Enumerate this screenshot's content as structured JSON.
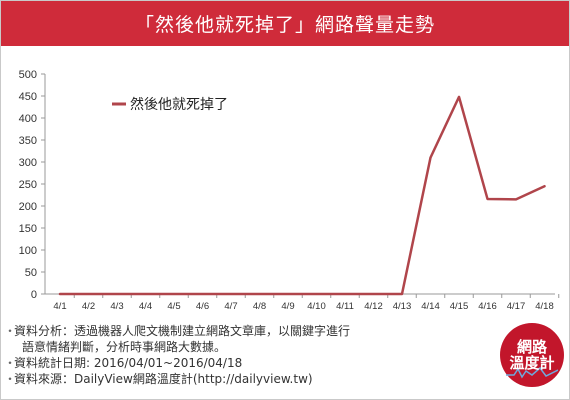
{
  "header": {
    "title": "「然後他就死掉了」網路聲量走勢"
  },
  "chart_data": {
    "type": "line",
    "title": "「然後他就死掉了」網路聲量走勢",
    "categories": [
      "4/1",
      "4/2",
      "4/3",
      "4/4",
      "4/5",
      "4/6",
      "4/7",
      "4/8",
      "4/9",
      "4/10",
      "4/11",
      "4/12",
      "4/13",
      "4/14",
      "4/15",
      "4/16",
      "4/17",
      "4/18"
    ],
    "series": [
      {
        "name": "然後他就死掉了",
        "values": [
          0,
          0,
          0,
          0,
          0,
          0,
          0,
          0,
          0,
          0,
          0,
          0,
          0,
          310,
          448,
          216,
          215,
          245
        ],
        "color": "#b0454b"
      }
    ],
    "ylim": [
      0,
      500
    ],
    "yticks": [
      0,
      50,
      100,
      150,
      200,
      250,
      300,
      350,
      400,
      450,
      500
    ],
    "grid": false,
    "legend_position": "top-left",
    "xlabel": "",
    "ylabel": ""
  },
  "notes": {
    "line1": "資料分析：透過機器人爬文機制建立網路文章庫，以關鍵字進行",
    "line2": "語意情緒判斷，分析時事網路大數據。",
    "line3": "資料統計日期: 2016/04/01~2016/04/18",
    "line4": "資料來源：DailyView網路溫度計(http://dailyview.tw)",
    "bullet": "・"
  },
  "badge": {
    "line1": "網路",
    "line2": "溫度計"
  },
  "colors": {
    "brand": "#cf2b3a",
    "badge": "#c2162b",
    "line": "#b0454b"
  }
}
